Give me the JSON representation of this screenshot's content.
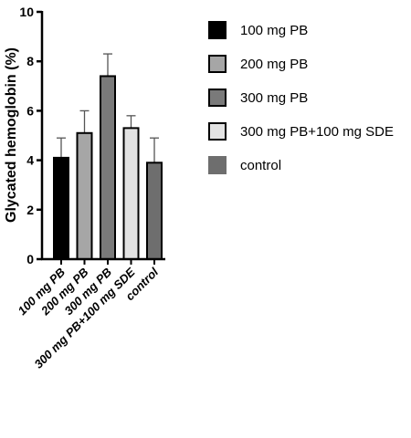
{
  "chart_data": {
    "type": "bar",
    "title": "",
    "xlabel": "",
    "ylabel": "Glycated hemoglobin (%)",
    "ylim": [
      0,
      10
    ],
    "yticks": [
      0,
      2,
      4,
      6,
      8,
      10
    ],
    "categories": [
      "100 mg PB",
      "200 mg PB",
      "300 mg PB",
      "300 mg PB+100 mg SDE",
      "control"
    ],
    "values": [
      4.1,
      5.1,
      7.4,
      5.3,
      3.9
    ],
    "errors": [
      0.8,
      0.9,
      0.9,
      0.5,
      1.0
    ],
    "colors": [
      "#000000",
      "#a6a6a6",
      "#7a7a7a",
      "#e3e3e3",
      "#6e6e6e"
    ],
    "legend": {
      "placement": "right",
      "entries": [
        "100 mg PB",
        "200 mg PB",
        "300 mg PB",
        "300 mg PB+100 mg SDE",
        "control"
      ]
    },
    "grid": false
  }
}
